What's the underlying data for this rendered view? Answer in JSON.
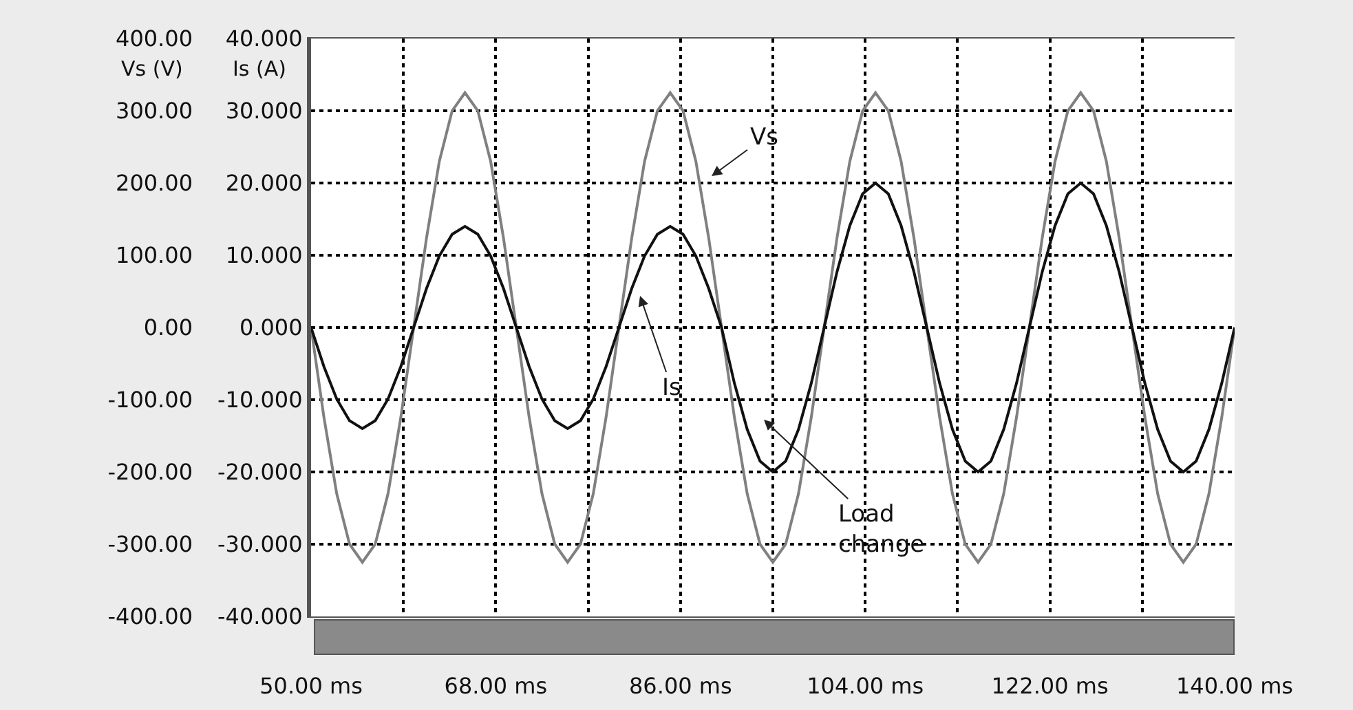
{
  "chart_data": {
    "type": "line",
    "ylabel": "Vs (V)",
    "y2label": "Is (A)",
    "x": [
      50,
      51.25,
      52.5,
      53.75,
      55,
      56.25,
      57.5,
      58.75,
      60,
      61.25,
      62.5,
      63.75,
      65,
      66.25,
      67.5,
      68.75,
      70,
      71.25,
      72.5,
      73.75,
      75,
      76.25,
      77.5,
      78.75,
      80,
      81.25,
      82.5,
      83.75,
      85,
      86.25,
      87.5,
      88.75,
      90,
      91.25,
      92.5,
      93.75,
      95,
      96.25,
      97.5,
      98.75,
      100,
      101.25,
      102.5,
      103.75,
      105,
      106.25,
      107.5,
      108.75,
      110,
      111.25,
      112.5,
      113.75,
      115,
      116.25,
      117.5,
      118.75,
      120,
      121.25,
      122.5,
      123.75,
      125,
      126.25,
      127.5,
      128.75,
      130,
      131.25,
      132.5,
      133.75,
      135,
      136.25,
      137.5,
      138.75,
      140
    ],
    "series": [
      {
        "color": "#808080",
        "values": [
          0,
          -124,
          -230,
          -300,
          -325,
          -300,
          -230,
          -124,
          0,
          124,
          230,
          300,
          325,
          300,
          230,
          124,
          0,
          -124,
          -230,
          -300,
          -325,
          -300,
          -230,
          -124,
          0,
          124,
          230,
          300,
          325,
          300,
          230,
          124,
          0,
          -124,
          -230,
          -300,
          -325,
          -300,
          -230,
          -124,
          0,
          124,
          230,
          300,
          325,
          300,
          230,
          124,
          0,
          -124,
          -230,
          -300,
          -325,
          -300,
          -230,
          -124,
          0,
          124,
          230,
          300,
          325,
          300,
          230,
          124,
          0,
          -124,
          -230,
          -300,
          -325,
          -300,
          -230,
          -124,
          0
        ]
      },
      {
        "color": "#111111",
        "axis": "y2",
        "values": [
          0,
          -5.4,
          -9.9,
          -12.9,
          -14,
          -12.9,
          -9.9,
          -5.4,
          0,
          5.4,
          9.9,
          12.9,
          14,
          12.9,
          9.9,
          5.4,
          0,
          -5.4,
          -9.9,
          -12.9,
          -14,
          -12.9,
          -9.9,
          -5.4,
          0,
          5.4,
          9.9,
          12.9,
          14,
          12.9,
          9.9,
          5.4,
          0,
          -7.7,
          -14.1,
          -18.5,
          -20,
          -18.5,
          -14.1,
          -7.7,
          0,
          7.7,
          14.1,
          18.5,
          20,
          18.5,
          14.1,
          7.7,
          0,
          -7.7,
          -14.1,
          -18.5,
          -20,
          -18.5,
          -14.1,
          -7.7,
          0,
          7.7,
          14.1,
          18.5,
          20,
          18.5,
          14.1,
          7.7,
          0,
          -7.7,
          -14.1,
          -18.5,
          -20,
          -18.5,
          -14.1,
          -7.7,
          0
        ]
      }
    ],
    "xlim": [
      50,
      140
    ],
    "xticks": [
      {
        "value": 50,
        "label": "50.00 ms"
      },
      {
        "value": 59,
        "label": null
      },
      {
        "value": 68,
        "label": "68.00 ms"
      },
      {
        "value": 77,
        "label": null
      },
      {
        "value": 86,
        "label": "86.00 ms"
      },
      {
        "value": 95,
        "label": null
      },
      {
        "value": 104,
        "label": "104.00 ms"
      },
      {
        "value": 113,
        "label": null
      },
      {
        "value": 122,
        "label": "122.00 ms"
      },
      {
        "value": 131,
        "label": null
      },
      {
        "value": 140,
        "label": "140.00 ms"
      }
    ],
    "ylim": [
      -400,
      400
    ],
    "yticks": [
      {
        "value": -400,
        "label": "-400.00"
      },
      {
        "value": -300,
        "label": "-300.00"
      },
      {
        "value": -200,
        "label": "-200.00"
      },
      {
        "value": -100,
        "label": "-100.00"
      },
      {
        "value": 0,
        "label": "0.00"
      },
      {
        "value": 100,
        "label": "100.00"
      },
      {
        "value": 200,
        "label": "200.00"
      },
      {
        "value": 300,
        "label": "300.00"
      },
      {
        "value": 400,
        "label": "400.00"
      }
    ],
    "y2lim": [
      -40,
      40
    ],
    "y2ticks": [
      {
        "value": -40,
        "label": "-40.000"
      },
      {
        "value": -30,
        "label": "-30.000"
      },
      {
        "value": -20,
        "label": "-20.000"
      },
      {
        "value": -10,
        "label": "-10.000"
      },
      {
        "value": 0,
        "label": "0.000"
      },
      {
        "value": 10,
        "label": "10.000"
      },
      {
        "value": 20,
        "label": "20.000"
      },
      {
        "value": 30,
        "label": "30.000"
      },
      {
        "value": 40,
        "label": "40.000"
      }
    ],
    "annotations": [
      "Vs",
      "Is",
      "Load\nchange"
    ],
    "grid": true,
    "marker": "none",
    "line_style": "solid"
  }
}
